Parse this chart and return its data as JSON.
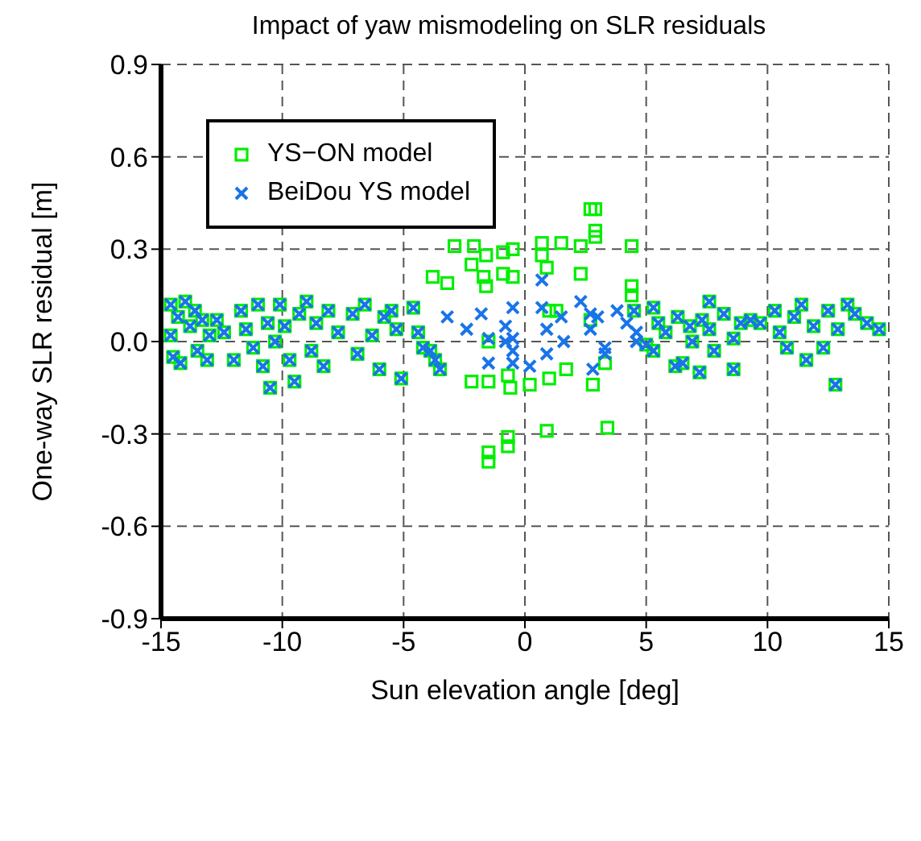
{
  "chart_data": {
    "type": "scatter",
    "title": "Impact of yaw mismodeling on SLR residuals",
    "xlabel": "Sun elevation angle [deg]",
    "ylabel": "One-way SLR residual [m]",
    "xlim": [
      -15,
      15
    ],
    "ylim": [
      -0.9,
      0.9
    ],
    "xticks": [
      -15,
      -10,
      -5,
      0,
      5,
      10,
      15
    ],
    "yticks": [
      -0.9,
      -0.6,
      -0.3,
      {
        "value": 0,
        "label": "0.0"
      },
      0.3,
      0.6,
      0.9
    ],
    "grid": true,
    "legend": "top left",
    "series": [
      {
        "name": "YS−ON model",
        "color": "#00ee00",
        "marker": "square",
        "x": [
          -14.6,
          -14.6,
          -14.5,
          -14.3,
          -14.2,
          -14.0,
          -13.8,
          -13.6,
          -13.5,
          -13.3,
          -13.1,
          -13.0,
          -12.7,
          -12.4,
          -12.0,
          -11.7,
          -11.5,
          -11.2,
          -11.0,
          -10.8,
          -10.6,
          -10.5,
          -10.3,
          -10.1,
          -9.9,
          -9.7,
          -9.5,
          -9.3,
          -9.0,
          -8.8,
          -8.6,
          -8.3,
          -8.1,
          -7.7,
          -7.1,
          -6.9,
          -6.6,
          -6.3,
          -6.0,
          -5.8,
          -5.5,
          -5.3,
          -5.1,
          -4.6,
          -4.4,
          -4.2,
          -3.9,
          -3.7,
          -3.5,
          -3.8,
          -3.2,
          -2.2,
          -2.9,
          -2.1,
          -2.2,
          -1.7,
          -1.6,
          -1.6,
          -0.9,
          -0.9,
          -0.5,
          -0.5,
          -1.5,
          -0.7,
          -0.6,
          0.2,
          -1.5,
          -1.5,
          -0.7,
          -0.7,
          0.7,
          0.7,
          1.5,
          2.3,
          2.3,
          2.7,
          2.9,
          2.9,
          2.9,
          4.4,
          4.4,
          4.4,
          0.9,
          1.0,
          1.3,
          1.0,
          1.7,
          0.9,
          2.8,
          3.4,
          3.3,
          2.7,
          -1.5,
          4.5,
          5.0,
          5.3,
          5.3,
          5.5,
          5.8,
          6.2,
          6.3,
          6.5,
          6.8,
          6.9,
          7.2,
          7.3,
          7.6,
          7.6,
          7.8,
          8.2,
          8.6,
          8.6,
          8.9,
          9.3,
          9.7,
          10.3,
          10.5,
          10.8,
          11.1,
          11.4,
          11.6,
          11.9,
          12.3,
          12.5,
          12.8,
          12.9,
          13.3,
          13.6,
          14.1,
          14.6
        ],
        "values": [
          0.12,
          0.02,
          -0.05,
          0.08,
          -0.07,
          0.13,
          0.05,
          0.1,
          -0.03,
          0.07,
          -0.06,
          0.02,
          0.07,
          0.03,
          -0.06,
          0.1,
          0.04,
          -0.02,
          0.12,
          -0.08,
          0.06,
          -0.15,
          0.0,
          0.12,
          0.05,
          -0.06,
          -0.13,
          0.09,
          0.13,
          -0.03,
          0.06,
          -0.08,
          0.1,
          0.03,
          0.09,
          -0.04,
          0.12,
          0.02,
          -0.09,
          0.08,
          0.1,
          0.04,
          -0.12,
          0.11,
          0.03,
          -0.02,
          -0.03,
          -0.06,
          -0.09,
          0.21,
          0.19,
          -0.13,
          0.31,
          0.31,
          0.25,
          0.21,
          0.28,
          0.18,
          0.29,
          0.22,
          0.3,
          0.21,
          -0.13,
          -0.11,
          -0.15,
          -0.14,
          -0.36,
          -0.39,
          -0.31,
          -0.34,
          0.32,
          0.28,
          0.32,
          0.31,
          0.22,
          0.43,
          0.43,
          0.36,
          0.34,
          0.31,
          0.18,
          0.15,
          0.24,
          0.1,
          0.1,
          -0.12,
          -0.09,
          -0.29,
          -0.14,
          -0.28,
          -0.07,
          0.07,
          0.0,
          0.1,
          -0.01,
          0.11,
          -0.03,
          0.06,
          0.03,
          -0.08,
          0.08,
          -0.07,
          0.05,
          0.0,
          -0.1,
          0.07,
          0.13,
          0.04,
          -0.03,
          0.09,
          0.01,
          -0.09,
          0.06,
          0.07,
          0.06,
          0.1,
          0.03,
          -0.02,
          0.08,
          0.12,
          -0.06,
          0.05,
          -0.02,
          0.1,
          -0.14,
          0.04,
          0.12,
          0.09,
          0.06,
          0.04
        ]
      },
      {
        "name": "BeiDou YS model",
        "color": "#1874e8",
        "marker": "cross",
        "x": [
          -14.6,
          -14.6,
          -14.5,
          -14.3,
          -14.2,
          -14.0,
          -13.8,
          -13.6,
          -13.5,
          -13.3,
          -13.1,
          -13.0,
          -12.7,
          -12.4,
          -12.0,
          -11.7,
          -11.5,
          -11.2,
          -11.0,
          -10.8,
          -10.6,
          -10.5,
          -10.3,
          -10.1,
          -9.9,
          -9.7,
          -9.5,
          -9.3,
          -9.0,
          -8.8,
          -8.6,
          -8.3,
          -8.1,
          -7.7,
          -7.1,
          -6.9,
          -6.6,
          -6.3,
          -6.0,
          -5.8,
          -5.5,
          -5.3,
          -5.1,
          -4.6,
          -4.4,
          -4.2,
          -3.9,
          -3.7,
          -3.5,
          -3.2,
          -2.4,
          -1.8,
          -1.5,
          -1.5,
          -0.8,
          -0.8,
          -0.5,
          -0.5,
          -0.5,
          -0.5,
          0.2,
          0.7,
          0.7,
          0.9,
          0.9,
          1.5,
          1.6,
          2.3,
          2.7,
          2.7,
          3.0,
          2.8,
          3.3,
          3.3,
          3.8,
          4.2,
          4.6,
          4.6,
          4.5,
          5.0,
          5.3,
          5.3,
          5.5,
          5.8,
          6.2,
          6.3,
          6.5,
          6.8,
          6.9,
          7.2,
          7.3,
          7.6,
          7.6,
          7.8,
          8.2,
          8.6,
          8.6,
          8.9,
          9.3,
          9.7,
          10.3,
          10.5,
          10.8,
          11.1,
          11.4,
          11.6,
          11.9,
          12.3,
          12.5,
          12.8,
          12.9,
          13.3,
          13.6,
          14.1,
          14.6
        ],
        "values": [
          0.12,
          0.02,
          -0.05,
          0.08,
          -0.07,
          0.13,
          0.05,
          0.1,
          -0.03,
          0.07,
          -0.06,
          0.02,
          0.07,
          0.03,
          -0.06,
          0.1,
          0.04,
          -0.02,
          0.12,
          -0.08,
          0.06,
          -0.15,
          0.0,
          0.12,
          0.05,
          -0.06,
          -0.13,
          0.09,
          0.13,
          -0.03,
          0.06,
          -0.08,
          0.1,
          0.03,
          0.09,
          -0.04,
          0.12,
          0.02,
          -0.09,
          0.08,
          0.1,
          0.04,
          -0.12,
          0.11,
          0.03,
          -0.02,
          -0.03,
          -0.06,
          -0.09,
          0.08,
          0.04,
          0.09,
          0.01,
          -0.07,
          0.05,
          0.0,
          0.11,
          0.01,
          -0.03,
          -0.07,
          -0.08,
          0.2,
          0.11,
          0.04,
          -0.04,
          0.08,
          0.0,
          0.13,
          0.09,
          0.04,
          0.08,
          -0.09,
          -0.02,
          -0.04,
          0.1,
          0.06,
          0.03,
          0.0,
          0.1,
          -0.01,
          0.11,
          -0.03,
          0.06,
          0.03,
          -0.08,
          0.08,
          -0.07,
          0.05,
          0.0,
          -0.1,
          0.07,
          0.13,
          0.04,
          -0.03,
          0.09,
          0.01,
          -0.09,
          0.06,
          0.07,
          0.06,
          0.1,
          0.03,
          -0.02,
          0.08,
          0.12,
          -0.06,
          0.05,
          -0.02,
          0.1,
          -0.14,
          0.04,
          0.12,
          0.09,
          0.06,
          0.04
        ]
      }
    ]
  }
}
